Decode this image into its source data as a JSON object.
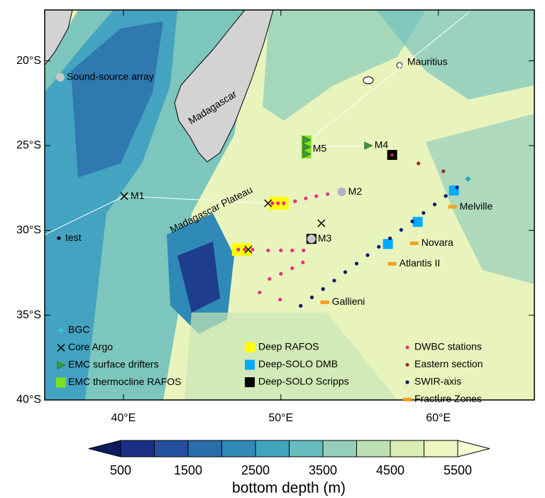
{
  "map": {
    "lonlim": [
      35,
      66.1
    ],
    "latlim": [
      -40,
      -17
    ],
    "lon_ticks": [
      {
        "value": 40,
        "label": "40°E"
      },
      {
        "value": 50,
        "label": "50°E"
      },
      {
        "value": 60,
        "label": "60°E"
      }
    ],
    "lat_ticks": [
      {
        "value": -20,
        "label": "20°S"
      },
      {
        "value": -25,
        "label": "25°S"
      },
      {
        "value": -30,
        "label": "30°S"
      },
      {
        "value": -35,
        "label": "35°S"
      },
      {
        "value": -40,
        "label": "40°S"
      }
    ],
    "place_labels": [
      "Madagascar",
      "Madagascar Plateau",
      "Mauritius"
    ],
    "sites": [
      {
        "label": "Sound-source array",
        "lon": 35.99,
        "lat": -20.97,
        "color": "#c8c8c8"
      },
      {
        "label": "M2",
        "lon": 53.87,
        "lat": -27.73,
        "color": "#b4b0c8"
      },
      {
        "label": "M3",
        "lon": 51.94,
        "lat": -30.5,
        "color": "#c8c8c8"
      },
      {
        "label": "test",
        "lon": 35.9,
        "lat": -30.46,
        "color": "#000000"
      }
    ],
    "layers": [
      {
        "name": "BGC",
        "shape": "plus",
        "color": "#2fd6d6",
        "points": [
          {
            "lon": 61.89,
            "lat": -26.97
          }
        ]
      },
      {
        "name": "Core Argo",
        "shape": "x",
        "color": "#000000",
        "points": [
          {
            "lon": 40.05,
            "lat": -27.98,
            "label": "M1"
          },
          {
            "lon": 49.19,
            "lat": -28.4
          },
          {
            "lon": 52.57,
            "lat": -29.58
          },
          {
            "lon": 47.93,
            "lat": -31.13
          }
        ]
      },
      {
        "name": "EMC surface drifters",
        "shape": "triangle",
        "color": "#3a9a3a",
        "points": [
          {
            "lon": 55.54,
            "lat": -25.0,
            "label": "M4"
          },
          {
            "lon": 51.62,
            "lat": -24.66
          },
          {
            "lon": 51.62,
            "lat": -25.08
          },
          {
            "lon": 51.62,
            "lat": -25.5
          }
        ]
      },
      {
        "name": "EMC thermocline RAFOS",
        "shape": "tallrect",
        "color": "#7ee01e",
        "points": [
          {
            "lon": 51.62,
            "lat": -25.08,
            "label": "M5"
          }
        ]
      },
      {
        "name": "Deep RAFOS",
        "shape": "bigsquare",
        "color": "#ffff00",
        "points": [
          {
            "lon": 49.86,
            "lat": -28.4
          },
          {
            "lon": 47.52,
            "lat": -31.13
          }
        ]
      },
      {
        "name": "Deep-SOLO DMB",
        "shape": "square",
        "color": "#00aaff",
        "points": [
          {
            "lon": 60.99,
            "lat": -27.65
          },
          {
            "lon": 58.69,
            "lat": -29.5
          },
          {
            "lon": 56.8,
            "lat": -30.8
          }
        ]
      },
      {
        "name": "Deep-SOLO Scripps",
        "shape": "square",
        "color": "#000000",
        "points": [
          {
            "lon": 57.07,
            "lat": -25.55
          },
          {
            "lon": 51.94,
            "lat": -30.5
          }
        ]
      },
      {
        "name": "DWBC stations",
        "shape": "dot",
        "color": "#e8308a",
        "points": [
          {
            "lon": 49.46,
            "lat": -28.4
          },
          {
            "lon": 49.82,
            "lat": -28.4
          },
          {
            "lon": 50.18,
            "lat": -28.4
          },
          {
            "lon": 50.9,
            "lat": -28.28
          },
          {
            "lon": 51.58,
            "lat": -28.11
          },
          {
            "lon": 52.25,
            "lat": -27.98
          },
          {
            "lon": 52.97,
            "lat": -27.86
          },
          {
            "lon": 47.3,
            "lat": -31.13
          },
          {
            "lon": 47.7,
            "lat": -31.13
          },
          {
            "lon": 48.2,
            "lat": -31.13
          },
          {
            "lon": 49.19,
            "lat": -31.18
          },
          {
            "lon": 50.0,
            "lat": -31.18
          },
          {
            "lon": 50.72,
            "lat": -31.18
          },
          {
            "lon": 51.44,
            "lat": -31.18
          },
          {
            "lon": 51.4,
            "lat": -31.89
          },
          {
            "lon": 50.72,
            "lat": -32.23
          },
          {
            "lon": 50.0,
            "lat": -32.56
          },
          {
            "lon": 49.28,
            "lat": -32.86
          },
          {
            "lon": 48.65,
            "lat": -33.66
          },
          {
            "lon": 49.95,
            "lat": -34.08
          }
        ]
      },
      {
        "name": "Eastern section",
        "shape": "dot",
        "color": "#a52a2a",
        "points": [
          {
            "lon": 57.07,
            "lat": -25.55
          },
          {
            "lon": 58.74,
            "lat": -26.05
          },
          {
            "lon": 60.32,
            "lat": -26.51
          }
        ]
      },
      {
        "name": "SWIR-axis",
        "shape": "dot",
        "color": "#0a1a6e",
        "points": [
          {
            "lon": 61.89,
            "lat": -26.97
          },
          {
            "lon": 61.18,
            "lat": -27.47
          },
          {
            "lon": 60.47,
            "lat": -27.97
          },
          {
            "lon": 59.77,
            "lat": -28.47
          },
          {
            "lon": 59.06,
            "lat": -28.97
          },
          {
            "lon": 58.35,
            "lat": -29.47
          },
          {
            "lon": 57.64,
            "lat": -29.97
          },
          {
            "lon": 56.93,
            "lat": -30.47
          },
          {
            "lon": 56.22,
            "lat": -30.97
          },
          {
            "lon": 55.51,
            "lat": -31.46
          },
          {
            "lon": 54.81,
            "lat": -31.96
          },
          {
            "lon": 54.09,
            "lat": -32.46
          },
          {
            "lon": 53.39,
            "lat": -32.96
          },
          {
            "lon": 52.68,
            "lat": -33.46
          },
          {
            "lon": 51.97,
            "lat": -33.95
          },
          {
            "lon": 51.26,
            "lat": -34.45
          }
        ]
      },
      {
        "name": "Fracture Zones",
        "shape": "dash",
        "color": "#f5a020",
        "points": [
          {
            "lon": 60.9,
            "lat": -28.61,
            "label": "Melville"
          },
          {
            "lon": 58.47,
            "lat": -30.76,
            "label": "Novara"
          },
          {
            "lon": 57.07,
            "lat": -31.97,
            "label": "Atlantis II"
          },
          {
            "lon": 52.79,
            "lat": -34.24,
            "label": "Gallieni"
          }
        ]
      }
    ],
    "colorbar": {
      "title": "bottom depth (m)",
      "levels": [
        500,
        1000,
        1500,
        2000,
        2500,
        3000,
        3500,
        4000,
        4500,
        5000,
        5500
      ],
      "ticks": [
        500,
        1500,
        2500,
        3500,
        4500,
        5500
      ],
      "colors": [
        "#0b1b5c",
        "#1b2f86",
        "#22509d",
        "#2a6dab",
        "#2f8ab7",
        "#3fa5bf",
        "#68bcbf",
        "#94cfba",
        "#bde0b3",
        "#dcedb4",
        "#eef6c0",
        "#fafcd3"
      ]
    }
  }
}
